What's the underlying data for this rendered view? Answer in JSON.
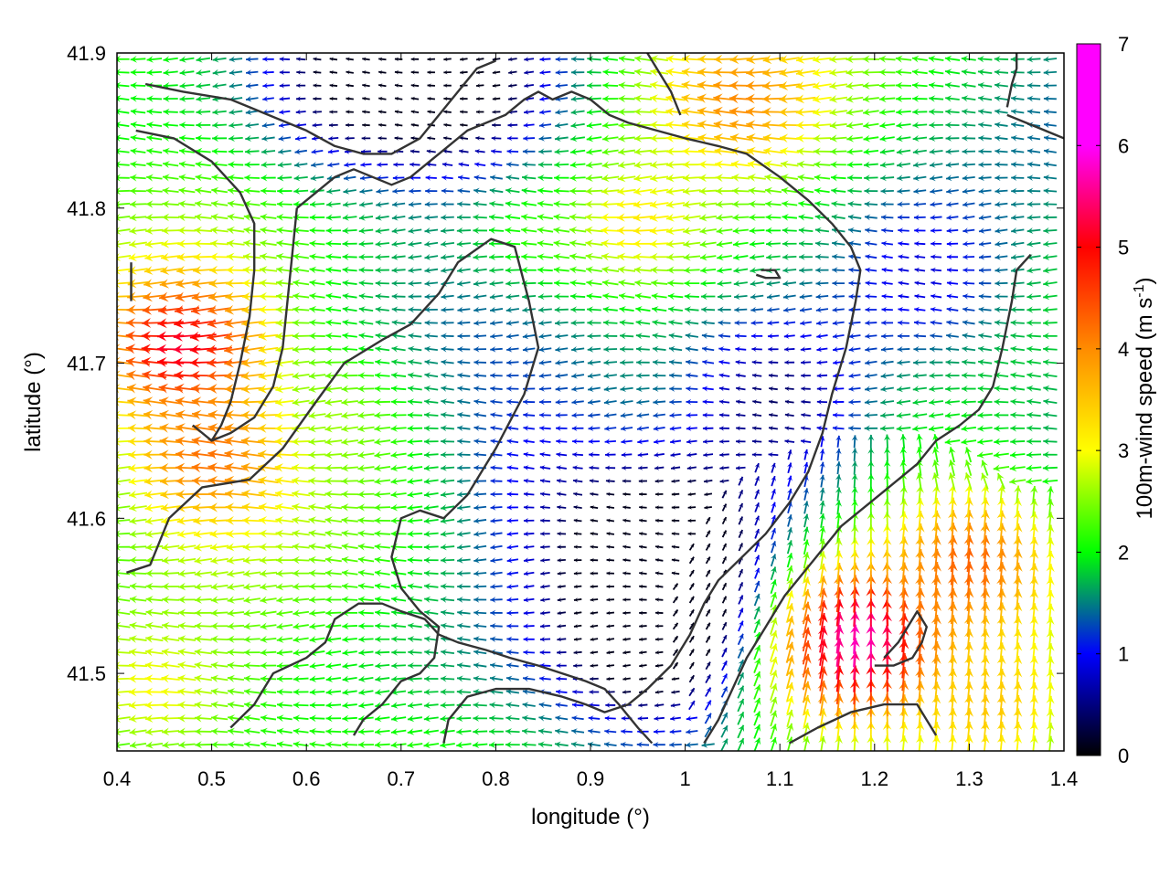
{
  "chart_data": {
    "type": "vector-field",
    "xlabel": "longitude (°)",
    "ylabel": "latitude (°)",
    "colorbar": {
      "label_main": "100m-wind speed (m s",
      "label_sup": "-1",
      "label_close": ")",
      "range": [
        0,
        7
      ],
      "ticks": [
        "0",
        "1",
        "2",
        "3",
        "4",
        "5",
        "6",
        "7"
      ],
      "colors": [
        "#000000",
        "#0000ff",
        "#00ff00",
        "#ffff00",
        "#ff8c00",
        "#ff0000",
        "#ff00ff",
        "#ff00ff"
      ]
    },
    "xlim": [
      0.4,
      1.4
    ],
    "ylim": [
      41.45,
      41.9
    ],
    "x_ticks": [
      "0.4",
      "0.5",
      "0.6",
      "0.7",
      "0.8",
      "0.9",
      "1",
      "1.1",
      "1.2",
      "1.3",
      "1.4"
    ],
    "y_ticks": [
      "41.5",
      "41.6",
      "41.7",
      "41.8",
      "41.9"
    ],
    "wind_speed_hotspots": [
      {
        "lon": 0.47,
        "lat": 41.71,
        "speed": 5.2
      },
      {
        "lon": 0.5,
        "lat": 41.64,
        "speed": 4.2
      },
      {
        "lon": 1.18,
        "lat": 41.52,
        "speed": 5.8
      },
      {
        "lon": 1.3,
        "lat": 41.57,
        "speed": 4.3
      },
      {
        "lon": 1.06,
        "lat": 41.87,
        "speed": 4.0
      },
      {
        "lon": 0.95,
        "lat": 41.79,
        "speed": 3.2
      },
      {
        "lon": 0.62,
        "lat": 41.66,
        "speed": 2.6
      },
      {
        "lon": 0.44,
        "lat": 41.49,
        "speed": 3.0
      },
      {
        "lon": 1.32,
        "lat": 41.48,
        "speed": 3.5
      },
      {
        "lon": 0.85,
        "lat": 41.8,
        "speed": 2.4
      }
    ],
    "wind_speed_lows": [
      {
        "lon": 0.98,
        "lat": 41.58,
        "depth": 2.0
      },
      {
        "lon": 1.1,
        "lat": 41.68,
        "depth": 1.9
      },
      {
        "lon": 0.97,
        "lat": 41.52,
        "depth": 1.8
      },
      {
        "lon": 0.78,
        "lat": 41.87,
        "depth": 1.6
      },
      {
        "lon": 0.65,
        "lat": 41.88,
        "depth": 1.6
      },
      {
        "lon": 1.25,
        "lat": 41.75,
        "depth": 1.4
      },
      {
        "lon": 0.84,
        "lat": 41.63,
        "depth": 0.8
      }
    ],
    "topography_contours": [
      [
        [
          0.41,
          41.565
        ],
        [
          0.435,
          41.57
        ],
        [
          0.455,
          41.6
        ],
        [
          0.49,
          41.62
        ],
        [
          0.54,
          41.625
        ],
        [
          0.575,
          41.645
        ],
        [
          0.61,
          41.675
        ],
        [
          0.64,
          41.7
        ],
        [
          0.68,
          41.715
        ],
        [
          0.71,
          41.725
        ],
        [
          0.74,
          41.745
        ],
        [
          0.76,
          41.765
        ],
        [
          0.795,
          41.78
        ],
        [
          0.82,
          41.775
        ],
        [
          0.835,
          41.74
        ],
        [
          0.845,
          41.71
        ],
        [
          0.83,
          41.68
        ],
        [
          0.8,
          41.645
        ],
        [
          0.77,
          41.615
        ],
        [
          0.745,
          41.6
        ],
        [
          0.72,
          41.605
        ],
        [
          0.7,
          41.6
        ],
        [
          0.69,
          41.575
        ],
        [
          0.7,
          41.555
        ],
        [
          0.72,
          41.54
        ],
        [
          0.74,
          41.53
        ],
        [
          0.735,
          41.51
        ],
        [
          0.72,
          41.5
        ],
        [
          0.7,
          41.495
        ],
        [
          0.68,
          41.48
        ],
        [
          0.66,
          41.47
        ],
        [
          0.65,
          41.46
        ]
      ],
      [
        [
          0.52,
          41.465
        ],
        [
          0.545,
          41.48
        ],
        [
          0.565,
          41.5
        ],
        [
          0.6,
          41.51
        ],
        [
          0.62,
          41.52
        ],
        [
          0.63,
          41.535
        ],
        [
          0.655,
          41.545
        ],
        [
          0.68,
          41.545
        ],
        [
          0.7,
          41.54
        ],
        [
          0.725,
          41.535
        ],
        [
          0.74,
          41.525
        ],
        [
          0.76,
          41.52
        ],
        [
          0.79,
          41.515
        ],
        [
          0.815,
          41.51
        ],
        [
          0.845,
          41.505
        ],
        [
          0.87,
          41.5
        ],
        [
          0.895,
          41.495
        ],
        [
          0.915,
          41.49
        ],
        [
          0.93,
          41.48
        ],
        [
          0.95,
          41.465
        ],
        [
          0.965,
          41.455
        ]
      ],
      [
        [
          0.745,
          41.455
        ],
        [
          0.75,
          41.47
        ],
        [
          0.77,
          41.485
        ],
        [
          0.8,
          41.49
        ],
        [
          0.835,
          41.49
        ],
        [
          0.87,
          41.485
        ],
        [
          0.895,
          41.48
        ],
        [
          0.915,
          41.475
        ],
        [
          0.94,
          41.48
        ],
        [
          0.96,
          41.49
        ],
        [
          0.985,
          41.505
        ],
        [
          1.005,
          41.525
        ],
        [
          1.02,
          41.545
        ],
        [
          1.035,
          41.56
        ],
        [
          1.06,
          41.575
        ],
        [
          1.085,
          41.59
        ],
        [
          1.11,
          41.61
        ],
        [
          1.13,
          41.63
        ],
        [
          1.145,
          41.655
        ],
        [
          1.155,
          41.68
        ],
        [
          1.17,
          41.71
        ],
        [
          1.18,
          41.74
        ],
        [
          1.185,
          41.76
        ],
        [
          1.175,
          41.775
        ],
        [
          1.155,
          41.79
        ],
        [
          1.13,
          41.805
        ],
        [
          1.1,
          41.82
        ],
        [
          1.065,
          41.835
        ],
        [
          1.035,
          41.84
        ],
        [
          1.0,
          41.845
        ],
        [
          0.97,
          41.85
        ],
        [
          0.94,
          41.855
        ],
        [
          0.92,
          41.86
        ],
        [
          0.9,
          41.87
        ],
        [
          0.88,
          41.875
        ],
        [
          0.86,
          41.87
        ],
        [
          0.845,
          41.875
        ],
        [
          0.83,
          41.87
        ],
        [
          0.81,
          41.86
        ],
        [
          0.79,
          41.855
        ],
        [
          0.77,
          41.85
        ],
        [
          0.75,
          41.84
        ],
        [
          0.73,
          41.83
        ],
        [
          0.71,
          41.82
        ],
        [
          0.69,
          41.815
        ],
        [
          0.67,
          41.82
        ],
        [
          0.65,
          41.825
        ],
        [
          0.63,
          41.82
        ],
        [
          0.61,
          41.81
        ],
        [
          0.59,
          41.8
        ]
      ],
      [
        [
          0.59,
          41.8
        ],
        [
          0.585,
          41.77
        ],
        [
          0.58,
          41.74
        ],
        [
          0.575,
          41.71
        ],
        [
          0.565,
          41.685
        ],
        [
          0.545,
          41.665
        ],
        [
          0.52,
          41.655
        ],
        [
          0.5,
          41.65
        ],
        [
          0.48,
          41.66
        ]
      ],
      [
        [
          0.42,
          41.85
        ],
        [
          0.46,
          41.845
        ],
        [
          0.5,
          41.83
        ],
        [
          0.53,
          41.81
        ],
        [
          0.545,
          41.79
        ],
        [
          0.545,
          41.76
        ],
        [
          0.54,
          41.73
        ],
        [
          0.53,
          41.7
        ],
        [
          0.52,
          41.675
        ],
        [
          0.51,
          41.66
        ],
        [
          0.5,
          41.65
        ]
      ],
      [
        [
          0.415,
          41.765
        ],
        [
          0.415,
          41.75
        ],
        [
          0.415,
          41.74
        ]
      ],
      [
        [
          0.43,
          41.88
        ],
        [
          0.47,
          41.875
        ],
        [
          0.52,
          41.87
        ],
        [
          0.56,
          41.86
        ],
        [
          0.6,
          41.85
        ],
        [
          0.63,
          41.84
        ],
        [
          0.66,
          41.835
        ],
        [
          0.69,
          41.835
        ],
        [
          0.72,
          41.845
        ],
        [
          0.74,
          41.86
        ],
        [
          0.76,
          41.875
        ],
        [
          0.78,
          41.89
        ],
        [
          0.8,
          41.895
        ]
      ],
      [
        [
          0.96,
          41.9
        ],
        [
          0.975,
          41.885
        ],
        [
          0.985,
          41.875
        ],
        [
          0.995,
          41.86
        ]
      ],
      [
        [
          1.08,
          41.76
        ],
        [
          1.095,
          41.76
        ],
        [
          1.1,
          41.755
        ],
        [
          1.085,
          41.755
        ],
        [
          1.075,
          41.757
        ]
      ],
      [
        [
          1.02,
          41.455
        ],
        [
          1.035,
          41.47
        ],
        [
          1.05,
          41.49
        ],
        [
          1.065,
          41.51
        ],
        [
          1.085,
          41.53
        ],
        [
          1.105,
          41.55
        ],
        [
          1.125,
          41.565
        ],
        [
          1.145,
          41.58
        ],
        [
          1.165,
          41.595
        ],
        [
          1.185,
          41.605
        ],
        [
          1.205,
          41.615
        ],
        [
          1.225,
          41.625
        ],
        [
          1.245,
          41.635
        ],
        [
          1.265,
          41.65
        ],
        [
          1.29,
          41.66
        ],
        [
          1.31,
          41.67
        ],
        [
          1.325,
          41.685
        ],
        [
          1.335,
          41.71
        ],
        [
          1.345,
          41.74
        ],
        [
          1.35,
          41.76
        ],
        [
          1.365,
          41.77
        ]
      ],
      [
        [
          1.2,
          41.505
        ],
        [
          1.22,
          41.505
        ],
        [
          1.24,
          41.51
        ],
        [
          1.25,
          41.52
        ],
        [
          1.255,
          41.53
        ],
        [
          1.245,
          41.54
        ],
        [
          1.235,
          41.53
        ],
        [
          1.225,
          41.52
        ],
        [
          1.21,
          41.51
        ]
      ],
      [
        [
          1.11,
          41.455
        ],
        [
          1.14,
          41.465
        ],
        [
          1.175,
          41.475
        ],
        [
          1.21,
          41.48
        ],
        [
          1.245,
          41.48
        ],
        [
          1.265,
          41.46
        ]
      ],
      [
        [
          1.34,
          41.865
        ],
        [
          1.345,
          41.88
        ],
        [
          1.35,
          41.89
        ],
        [
          1.35,
          41.9
        ]
      ],
      [
        [
          1.34,
          41.86
        ],
        [
          1.36,
          41.855
        ],
        [
          1.38,
          41.85
        ],
        [
          1.4,
          41.845
        ]
      ]
    ]
  }
}
